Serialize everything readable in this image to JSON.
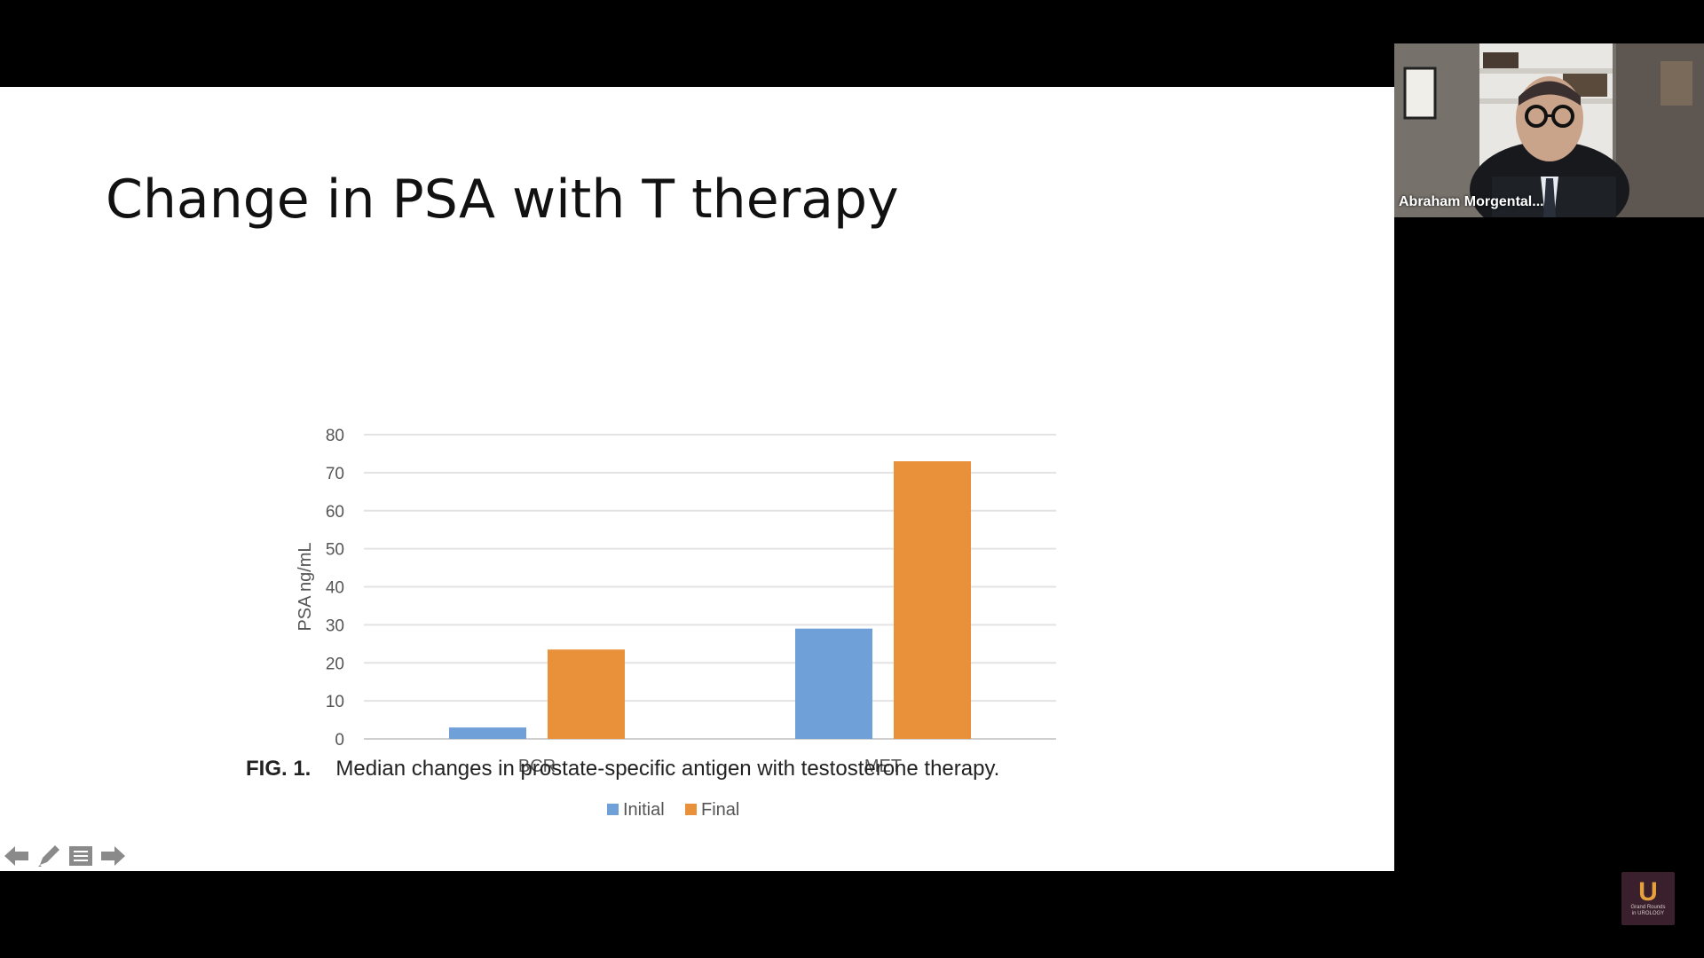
{
  "slide": {
    "title": "Change in PSA with T therapy",
    "caption_fig": "FIG. 1.",
    "caption_text": "Median changes in prostate-specific antigen with testosterone therapy."
  },
  "chart_data": {
    "type": "bar",
    "categories": [
      "BCR",
      "MET"
    ],
    "series": [
      {
        "name": "Initial",
        "values": [
          3,
          29
        ],
        "color": "#6fa0d8"
      },
      {
        "name": "Final",
        "values": [
          23.5,
          73
        ],
        "color": "#e8913a"
      }
    ],
    "ylabel": "PSA ng/mL",
    "ylim": [
      0,
      80
    ],
    "yticks": [
      0,
      10,
      20,
      30,
      40,
      50,
      60,
      70,
      80
    ],
    "grid": true,
    "legend_position": "bottom"
  },
  "slide_nav": {
    "icons": [
      "arrow-left-icon",
      "pen-icon",
      "menu-icon",
      "arrow-right-icon"
    ]
  },
  "participant": {
    "name": "Abraham Morgental..."
  },
  "logo": {
    "letter": "U",
    "line1": "Grand Rounds",
    "line2": "in UROLOGY",
    "accent": "#e6a13d"
  }
}
